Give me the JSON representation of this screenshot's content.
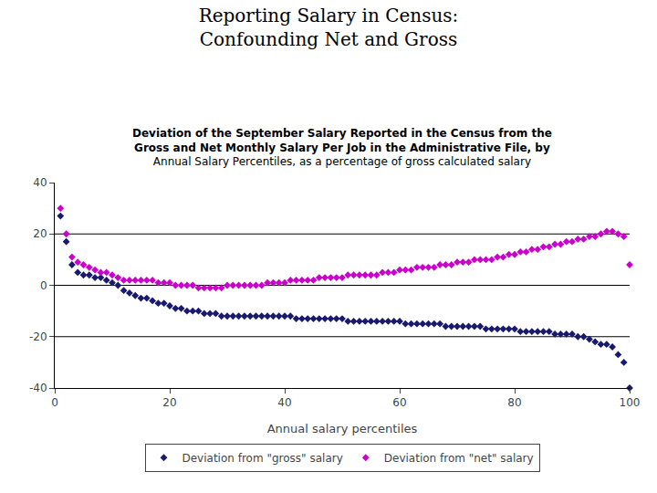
{
  "chart_data": {
    "type": "scatter",
    "title": [
      "Reporting Salary in Census:",
      "Confounding Net and Gross"
    ],
    "subtitle": [
      "Deviation of the September Salary Reported in the Census from the",
      "Gross and Net Monthly Salary Per Job in the Administrative File, by",
      "Annual Salary Percentiles, as a percentage of gross calculated salary"
    ],
    "x_label": "Annual salary percentiles",
    "xlim": [
      0,
      100
    ],
    "ylim": [
      -40,
      40
    ],
    "xticks": [
      0,
      20,
      40,
      60,
      80,
      100
    ],
    "yticks": [
      -40,
      -20,
      0,
      20,
      40
    ],
    "hlines": [
      0,
      20,
      -20
    ],
    "grid": false,
    "legend": "bottom",
    "marker": "diamond",
    "x": [
      1,
      2,
      3,
      4,
      5,
      6,
      7,
      8,
      9,
      10,
      11,
      12,
      13,
      14,
      15,
      16,
      17,
      18,
      19,
      20,
      21,
      22,
      23,
      24,
      25,
      26,
      27,
      28,
      29,
      30,
      31,
      32,
      33,
      34,
      35,
      36,
      37,
      38,
      39,
      40,
      41,
      42,
      43,
      44,
      45,
      46,
      47,
      48,
      49,
      50,
      51,
      52,
      53,
      54,
      55,
      56,
      57,
      58,
      59,
      60,
      61,
      62,
      63,
      64,
      65,
      66,
      67,
      68,
      69,
      70,
      71,
      72,
      73,
      74,
      75,
      76,
      77,
      78,
      79,
      80,
      81,
      82,
      83,
      84,
      85,
      86,
      87,
      88,
      89,
      90,
      91,
      92,
      93,
      94,
      95,
      96,
      97,
      98,
      99,
      100
    ],
    "series": [
      {
        "name": "Deviation from \"gross\" salary",
        "color": "#191970",
        "values": [
          27,
          17,
          8,
          5,
          4,
          4,
          3,
          3,
          2,
          1,
          0,
          -2,
          -3,
          -4,
          -5,
          -5,
          -6,
          -7,
          -7,
          -8,
          -9,
          -9,
          -10,
          -10,
          -10,
          -11,
          -11,
          -11,
          -12,
          -12,
          -12,
          -12,
          -12,
          -12,
          -12,
          -12,
          -12,
          -12,
          -12,
          -12,
          -12,
          -13,
          -13,
          -13,
          -13,
          -13,
          -13,
          -13,
          -13,
          -13,
          -14,
          -14,
          -14,
          -14,
          -14,
          -14,
          -14,
          -14,
          -14,
          -14,
          -15,
          -15,
          -15,
          -15,
          -15,
          -15,
          -15,
          -16,
          -16,
          -16,
          -16,
          -16,
          -16,
          -16,
          -17,
          -17,
          -17,
          -17,
          -17,
          -17,
          -18,
          -18,
          -18,
          -18,
          -18,
          -18,
          -19,
          -19,
          -19,
          -19,
          -20,
          -20,
          -21,
          -22,
          -23,
          -23,
          -24,
          -27,
          -30,
          -40
        ]
      },
      {
        "name": "Deviation from \"net\" salary",
        "color": "#CC00CC",
        "values": [
          30,
          20,
          11,
          9,
          8,
          7,
          6,
          5,
          5,
          4,
          3,
          2,
          2,
          2,
          2,
          2,
          2,
          1,
          1,
          1,
          0,
          0,
          0,
          0,
          -1,
          -1,
          -1,
          -1,
          -1,
          0,
          0,
          0,
          0,
          0,
          0,
          0,
          1,
          1,
          1,
          1,
          2,
          2,
          2,
          2,
          2,
          3,
          3,
          3,
          3,
          3,
          4,
          4,
          4,
          4,
          4,
          4,
          5,
          5,
          5,
          6,
          6,
          6,
          7,
          7,
          7,
          7,
          8,
          8,
          8,
          9,
          9,
          9,
          10,
          10,
          10,
          10,
          11,
          11,
          12,
          12,
          13,
          13,
          14,
          14,
          15,
          15,
          16,
          16,
          17,
          17,
          18,
          18,
          19,
          19,
          20,
          21,
          21,
          20,
          19,
          8
        ]
      }
    ]
  }
}
